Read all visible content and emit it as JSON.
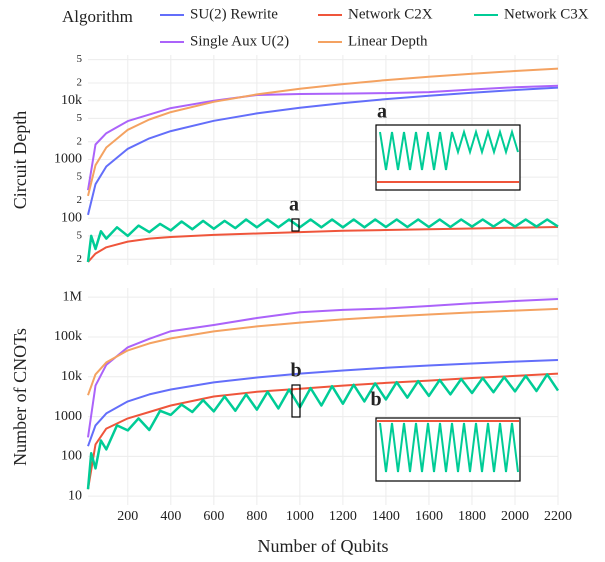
{
  "chart_data": [
    {
      "type": "line",
      "log_y": true,
      "legend_title": "Algorithm",
      "ylabel": "Circuit Depth",
      "annotations": [
        "a",
        "a"
      ],
      "xlim": [
        15,
        2200
      ],
      "xticks": [
        200,
        400,
        600,
        800,
        1000,
        1200,
        1400,
        1600,
        1800,
        2000,
        2200
      ],
      "ylim": [
        16,
        60000
      ],
      "yticks": [
        {
          "value": 20,
          "label": "2"
        },
        {
          "value": 50,
          "label": "5"
        },
        100,
        {
          "value": 200,
          "label": "2"
        },
        {
          "value": 500,
          "label": "5"
        },
        1000,
        {
          "value": 2000,
          "label": "2"
        },
        {
          "value": 5000,
          "label": "5"
        },
        {
          "value": 10000,
          "label": "10k"
        },
        {
          "value": 20000,
          "label": "2"
        },
        {
          "value": 50000,
          "label": "5"
        }
      ],
      "x": [
        15,
        50,
        100,
        200,
        300,
        400,
        600,
        800,
        1000,
        1200,
        1400,
        1600,
        1800,
        2000,
        2200
      ],
      "series": [
        {
          "name": "SU(2) Rewrite",
          "color": "#636efa",
          "values": [
            114,
            380,
            760,
            1520,
            2280,
            3040,
            4560,
            6080,
            7600,
            9120,
            10640,
            12160,
            13680,
            15200,
            16720
          ]
        },
        {
          "name": "Network C2X",
          "color": "#ef553b",
          "values": [
            18,
            25,
            32,
            40,
            45,
            48,
            52,
            55,
            58,
            61,
            63,
            65,
            67,
            69,
            71
          ]
        },
        {
          "name": "Network C3X",
          "color": "#00cc96",
          "x": [
            15,
            30,
            50,
            75,
            100,
            150,
            200,
            250,
            300,
            350,
            400,
            450,
            500,
            550,
            600,
            650,
            700,
            750,
            800,
            850,
            900,
            950,
            1000,
            1050,
            1100,
            1150,
            1200,
            1250,
            1300,
            1350,
            1400,
            1450,
            1500,
            1550,
            1600,
            1650,
            1700,
            1750,
            1800,
            1850,
            1900,
            1950,
            2000,
            2050,
            2100,
            2150,
            2200
          ],
          "values": [
            18,
            50,
            30,
            60,
            45,
            70,
            50,
            75,
            58,
            80,
            62,
            88,
            65,
            90,
            66,
            90,
            68,
            95,
            70,
            95,
            70,
            95,
            70,
            95,
            70,
            95,
            70,
            95,
            70,
            95,
            71,
            95,
            71,
            95,
            71,
            95,
            71,
            95,
            72,
            95,
            72,
            95,
            72,
            95,
            72,
            95,
            72
          ]
        },
        {
          "name": "Single Aux U(2)",
          "color": "#ab63fa",
          "values": [
            300,
            1800,
            2800,
            4500,
            5800,
            7500,
            10000,
            12500,
            13000,
            13200,
            13500,
            14000,
            15500,
            17000,
            18000
          ]
        },
        {
          "name": "Linear Depth",
          "color": "#f4a261",
          "values": [
            240,
            800,
            1600,
            3200,
            4800,
            6400,
            9600,
            12800,
            16000,
            19200,
            22400,
            25600,
            28800,
            32000,
            35200
          ]
        }
      ]
    },
    {
      "type": "line",
      "log_y": true,
      "ylabel": "Number of CNOTs",
      "xlabel": "Number of Qubits",
      "annotations": [
        "b",
        "b"
      ],
      "xlim": [
        15,
        2200
      ],
      "xticks": [
        200,
        400,
        600,
        800,
        1000,
        1200,
        1400,
        1600,
        1800,
        2000,
        2200
      ],
      "ylim": [
        6,
        1700000
      ],
      "yticks": [
        10,
        100,
        1000,
        {
          "value": 10000,
          "label": "10k"
        },
        {
          "value": 100000,
          "label": "100k"
        },
        {
          "value": 1000000,
          "label": "1M"
        }
      ],
      "x": [
        15,
        50,
        100,
        200,
        300,
        400,
        600,
        800,
        1000,
        1200,
        1400,
        1600,
        1800,
        2000,
        2200
      ],
      "series": [
        {
          "name": "SU(2) Rewrite",
          "color": "#636efa",
          "values": [
            180,
            600,
            1200,
            2400,
            3600,
            4800,
            7200,
            9600,
            12000,
            14400,
            16800,
            19200,
            21600,
            24000,
            26400
          ]
        },
        {
          "name": "Network C2X",
          "color": "#ef553b",
          "values": [
            15,
            200,
            500,
            900,
            1300,
            1900,
            3200,
            4200,
            5000,
            6000,
            7000,
            8000,
            9300,
            10500,
            12000
          ]
        },
        {
          "name": "Network C3X",
          "color": "#00cc96",
          "x": [
            15,
            30,
            50,
            75,
            100,
            150,
            200,
            250,
            300,
            350,
            400,
            450,
            500,
            550,
            600,
            650,
            700,
            750,
            800,
            850,
            900,
            950,
            1000,
            1050,
            1100,
            1150,
            1200,
            1250,
            1300,
            1350,
            1400,
            1450,
            1500,
            1550,
            1600,
            1650,
            1700,
            1750,
            1800,
            1850,
            1900,
            1950,
            2000,
            2050,
            2100,
            2150,
            2200
          ],
          "values": [
            15,
            120,
            50,
            250,
            150,
            600,
            450,
            900,
            460,
            1400,
            1100,
            2000,
            1300,
            2600,
            1350,
            3200,
            1400,
            3600,
            1500,
            4200,
            1600,
            4800,
            1700,
            5200,
            1900,
            5800,
            2100,
            6300,
            2400,
            6800,
            2700,
            7300,
            3000,
            7800,
            3300,
            8300,
            3600,
            8800,
            3900,
            9300,
            4100,
            9800,
            4300,
            10500,
            4400,
            11500,
            4500
          ]
        },
        {
          "name": "Single Aux U(2)",
          "color": "#ab63fa",
          "values": [
            300,
            6000,
            20000,
            55000,
            90000,
            140000,
            200000,
            300000,
            420000,
            480000,
            520000,
            600000,
            700000,
            800000,
            900000
          ]
        },
        {
          "name": "Linear Depth",
          "color": "#f4a261",
          "values": [
            3450,
            11500,
            23000,
            46000,
            69000,
            92000,
            138000,
            184000,
            230000,
            276000,
            322000,
            368000,
            414000,
            460000,
            506000
          ]
        }
      ]
    }
  ]
}
